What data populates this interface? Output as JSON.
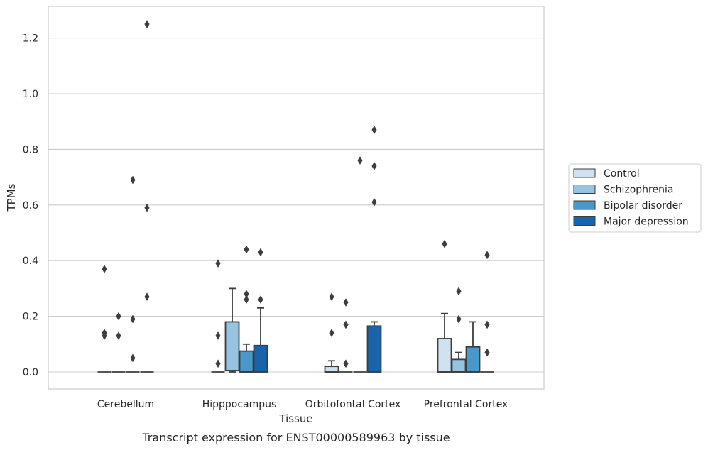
{
  "caption": "Transcript expression for ENST00000589963 by tissue",
  "chart_data": {
    "type": "box",
    "xlabel": "Tissue",
    "ylabel": "TPMs",
    "ylim": [
      -0.06,
      1.31
    ],
    "yticks": [
      "0.0",
      "0.2",
      "0.4",
      "0.6",
      "0.8",
      "1.0",
      "1.2"
    ],
    "ytick_values": [
      0.0,
      0.2,
      0.4,
      0.6,
      0.8,
      1.0,
      1.2
    ],
    "grid": "horizontal",
    "legend_position": "right",
    "categories": [
      "Cerebellum",
      "Hipppocampus",
      "Orbitofontal Cortex",
      "Prefrontal Cortex"
    ],
    "series": [
      {
        "name": "Control",
        "color": "#d0e1f2",
        "boxes": [
          {
            "q1": 0,
            "median": 0,
            "q3": 0,
            "whislo": 0,
            "whishi": 0,
            "fliers": [
              0.37,
              0.14,
              0.13
            ]
          },
          {
            "q1": 0,
            "median": 0,
            "q3": 0,
            "whislo": 0,
            "whishi": 0,
            "fliers": [
              0.39,
              0.13,
              0.03
            ]
          },
          {
            "q1": 0,
            "median": 0,
            "q3": 0.02,
            "whislo": 0,
            "whishi": 0.04,
            "fliers": [
              0.27,
              0.14
            ]
          },
          {
            "q1": 0,
            "median": 0,
            "q3": 0.12,
            "whislo": 0,
            "whishi": 0.21,
            "fliers": [
              0.46
            ]
          }
        ]
      },
      {
        "name": "Schizophrenia",
        "color": "#94c4df",
        "boxes": [
          {
            "q1": 0,
            "median": 0,
            "q3": 0,
            "whislo": 0,
            "whishi": 0,
            "fliers": [
              0.2,
              0.13
            ]
          },
          {
            "q1": 0.005,
            "median": 0.005,
            "q3": 0.18,
            "whislo": 0,
            "whishi": 0.3,
            "fliers": []
          },
          {
            "q1": 0,
            "median": 0,
            "q3": 0,
            "whislo": 0,
            "whishi": 0,
            "fliers": [
              0.25,
              0.17,
              0.03
            ]
          },
          {
            "q1": 0,
            "median": 0,
            "q3": 0.045,
            "whislo": 0,
            "whishi": 0.07,
            "fliers": [
              0.29,
              0.19
            ]
          }
        ]
      },
      {
        "name": "Bipolar disorder",
        "color": "#4a98c9",
        "boxes": [
          {
            "q1": 0,
            "median": 0,
            "q3": 0,
            "whislo": 0,
            "whishi": 0,
            "fliers": [
              0.69,
              0.19,
              0.05
            ]
          },
          {
            "q1": 0,
            "median": 0,
            "q3": 0.075,
            "whislo": 0,
            "whishi": 0.1,
            "fliers": [
              0.44,
              0.28,
              0.26
            ]
          },
          {
            "q1": 0,
            "median": 0,
            "q3": 0,
            "whislo": 0,
            "whishi": 0,
            "fliers": [
              0.76
            ]
          },
          {
            "q1": 0,
            "median": 0,
            "q3": 0.09,
            "whislo": 0,
            "whishi": 0.18,
            "fliers": []
          }
        ]
      },
      {
        "name": "Major depression",
        "color": "#1764ab",
        "boxes": [
          {
            "q1": 0,
            "median": 0,
            "q3": 0,
            "whislo": 0,
            "whishi": 0,
            "fliers": [
              1.25,
              0.59,
              0.27
            ]
          },
          {
            "q1": 0,
            "median": 0,
            "q3": 0.095,
            "whislo": 0,
            "whishi": 0.23,
            "fliers": [
              0.43,
              0.26
            ]
          },
          {
            "q1": 0,
            "median": 0,
            "q3": 0.165,
            "whislo": 0,
            "whishi": 0.18,
            "fliers": [
              0.87,
              0.74,
              0.61
            ]
          },
          {
            "q1": 0,
            "median": 0,
            "q3": 0,
            "whislo": 0,
            "whishi": 0,
            "fliers": [
              0.42,
              0.17,
              0.07
            ]
          }
        ]
      }
    ]
  }
}
